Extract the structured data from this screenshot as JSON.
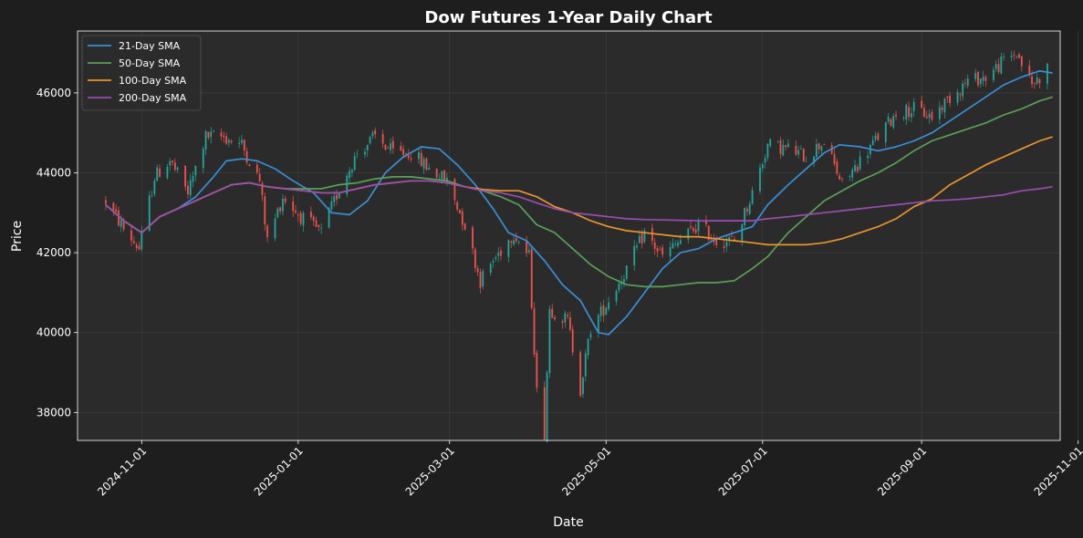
{
  "colors": {
    "figure_bg": "#1e1e1e",
    "plot_bg": "#2b2b2b",
    "grid": "#3c3c3c",
    "text": "#ffffff",
    "up": "#26a69a",
    "down": "#ef5350",
    "sma21": "#3a8fd6",
    "sma50": "#5aa05a",
    "sma100": "#e8952e",
    "sma200": "#9a4db0"
  },
  "chart_data": {
    "type": "line",
    "title": "Dow Futures 1-Year Daily Chart",
    "xlabel": "Date",
    "ylabel": "Price",
    "xlim": [
      "2024-10-07",
      "2025-10-25"
    ],
    "ylim": [
      37300,
      47550
    ],
    "grid": true,
    "legend_position": "top-left",
    "x_ticks": [
      "2024-11-01",
      "2025-01-01",
      "2025-03-01",
      "2025-05-01",
      "2025-07-01",
      "2025-09-01",
      "2025-11-01"
    ],
    "y_ticks": [
      38000,
      40000,
      42000,
      44000,
      46000
    ],
    "candlestick_anchors": [
      [
        "2024-10-18",
        43300
      ],
      [
        "2024-10-25",
        42600
      ],
      [
        "2024-10-31",
        42100
      ],
      [
        "2024-11-06",
        43900
      ],
      [
        "2024-11-12",
        44300
      ],
      [
        "2024-11-19",
        43500
      ],
      [
        "2024-11-26",
        44900
      ],
      [
        "2024-12-03",
        44900
      ],
      [
        "2024-12-10",
        44700
      ],
      [
        "2024-12-17",
        43800
      ],
      [
        "2024-12-20",
        42300
      ],
      [
        "2024-12-26",
        43400
      ],
      [
        "2025-01-02",
        42900
      ],
      [
        "2025-01-10",
        42500
      ],
      [
        "2025-01-17",
        43600
      ],
      [
        "2025-01-24",
        44500
      ],
      [
        "2025-01-31",
        44900
      ],
      [
        "2025-02-07",
        44500
      ],
      [
        "2025-02-14",
        44500
      ],
      [
        "2025-02-21",
        44100
      ],
      [
        "2025-02-28",
        43800
      ],
      [
        "2025-03-07",
        42700
      ],
      [
        "2025-03-13",
        41300
      ],
      [
        "2025-03-18",
        41800
      ],
      [
        "2025-03-26",
        42500
      ],
      [
        "2025-04-01",
        41900
      ],
      [
        "2025-04-04",
        38500
      ],
      [
        "2025-04-07",
        37500
      ],
      [
        "2025-04-09",
        40600
      ],
      [
        "2025-04-16",
        40300
      ],
      [
        "2025-04-21",
        38600
      ],
      [
        "2025-04-25",
        40100
      ],
      [
        "2025-05-01",
        40700
      ],
      [
        "2025-05-09",
        41600
      ],
      [
        "2025-05-16",
        42500
      ],
      [
        "2025-05-23",
        41900
      ],
      [
        "2025-05-30",
        42300
      ],
      [
        "2025-06-06",
        42700
      ],
      [
        "2025-06-13",
        42300
      ],
      [
        "2025-06-20",
        42300
      ],
      [
        "2025-06-27",
        43500
      ],
      [
        "2025-07-03",
        44700
      ],
      [
        "2025-07-11",
        44600
      ],
      [
        "2025-07-18",
        44400
      ],
      [
        "2025-07-25",
        44800
      ],
      [
        "2025-08-01",
        43700
      ],
      [
        "2025-08-08",
        44300
      ],
      [
        "2025-08-15",
        44900
      ],
      [
        "2025-08-22",
        45500
      ],
      [
        "2025-08-29",
        45600
      ],
      [
        "2025-09-05",
        45400
      ],
      [
        "2025-09-12",
        45900
      ],
      [
        "2025-09-19",
        46300
      ],
      [
        "2025-09-26",
        46400
      ],
      [
        "2025-10-03",
        46800
      ],
      [
        "2025-10-08",
        47000
      ],
      [
        "2025-10-14",
        46200
      ],
      [
        "2025-10-20",
        46600
      ]
    ],
    "series": [
      {
        "name": "21-Day SMA",
        "points": [
          [
            "2024-10-18",
            43200
          ],
          [
            "2024-10-25",
            42800
          ],
          [
            "2024-11-01",
            42500
          ],
          [
            "2024-11-08",
            42900
          ],
          [
            "2024-11-15",
            43100
          ],
          [
            "2024-11-22",
            43400
          ],
          [
            "2024-11-29",
            43900
          ],
          [
            "2024-12-04",
            44300
          ],
          [
            "2024-12-10",
            44350
          ],
          [
            "2024-12-16",
            44300
          ],
          [
            "2024-12-23",
            44100
          ],
          [
            "2024-12-30",
            43800
          ],
          [
            "2025-01-07",
            43500
          ],
          [
            "2025-01-14",
            43000
          ],
          [
            "2025-01-21",
            42950
          ],
          [
            "2025-01-28",
            43300
          ],
          [
            "2025-02-04",
            44000
          ],
          [
            "2025-02-11",
            44400
          ],
          [
            "2025-02-18",
            44650
          ],
          [
            "2025-02-25",
            44600
          ],
          [
            "2025-03-04",
            44200
          ],
          [
            "2025-03-11",
            43700
          ],
          [
            "2025-03-18",
            43100
          ],
          [
            "2025-03-24",
            42500
          ],
          [
            "2025-03-31",
            42300
          ],
          [
            "2025-04-07",
            41800
          ],
          [
            "2025-04-14",
            41200
          ],
          [
            "2025-04-21",
            40800
          ],
          [
            "2025-04-28",
            40000
          ],
          [
            "2025-05-02",
            39950
          ],
          [
            "2025-05-09",
            40400
          ],
          [
            "2025-05-16",
            41000
          ],
          [
            "2025-05-23",
            41600
          ],
          [
            "2025-05-30",
            42000
          ],
          [
            "2025-06-06",
            42100
          ],
          [
            "2025-06-13",
            42350
          ],
          [
            "2025-06-20",
            42500
          ],
          [
            "2025-06-27",
            42650
          ],
          [
            "2025-07-03",
            43200
          ],
          [
            "2025-07-11",
            43700
          ],
          [
            "2025-07-18",
            44100
          ],
          [
            "2025-07-25",
            44500
          ],
          [
            "2025-07-31",
            44700
          ],
          [
            "2025-08-08",
            44650
          ],
          [
            "2025-08-15",
            44550
          ],
          [
            "2025-08-22",
            44650
          ],
          [
            "2025-08-29",
            44800
          ],
          [
            "2025-09-05",
            45000
          ],
          [
            "2025-09-12",
            45300
          ],
          [
            "2025-09-19",
            45600
          ],
          [
            "2025-09-26",
            45900
          ],
          [
            "2025-10-03",
            46200
          ],
          [
            "2025-10-10",
            46400
          ],
          [
            "2025-10-17",
            46550
          ],
          [
            "2025-10-22",
            46500
          ]
        ]
      },
      {
        "name": "50-Day SMA",
        "points": [
          [
            "2024-10-18",
            43200
          ],
          [
            "2024-10-25",
            42800
          ],
          [
            "2024-11-01",
            42500
          ],
          [
            "2024-11-08",
            42900
          ],
          [
            "2024-11-15",
            43100
          ],
          [
            "2024-11-22",
            43300
          ],
          [
            "2024-11-29",
            43500
          ],
          [
            "2024-12-06",
            43700
          ],
          [
            "2024-12-13",
            43750
          ],
          [
            "2024-12-20",
            43650
          ],
          [
            "2024-12-27",
            43600
          ],
          [
            "2025-01-03",
            43600
          ],
          [
            "2025-01-10",
            43600
          ],
          [
            "2025-01-17",
            43700
          ],
          [
            "2025-01-24",
            43750
          ],
          [
            "2025-01-31",
            43850
          ],
          [
            "2025-02-07",
            43900
          ],
          [
            "2025-02-14",
            43900
          ],
          [
            "2025-02-21",
            43850
          ],
          [
            "2025-02-28",
            43800
          ],
          [
            "2025-03-07",
            43650
          ],
          [
            "2025-03-14",
            43550
          ],
          [
            "2025-03-21",
            43400
          ],
          [
            "2025-03-28",
            43200
          ],
          [
            "2025-04-04",
            42700
          ],
          [
            "2025-04-11",
            42500
          ],
          [
            "2025-04-18",
            42100
          ],
          [
            "2025-04-25",
            41700
          ],
          [
            "2025-05-02",
            41400
          ],
          [
            "2025-05-09",
            41200
          ],
          [
            "2025-05-16",
            41150
          ],
          [
            "2025-05-23",
            41150
          ],
          [
            "2025-05-30",
            41200
          ],
          [
            "2025-06-06",
            41250
          ],
          [
            "2025-06-13",
            41250
          ],
          [
            "2025-06-20",
            41300
          ],
          [
            "2025-06-27",
            41600
          ],
          [
            "2025-07-03",
            41900
          ],
          [
            "2025-07-11",
            42500
          ],
          [
            "2025-07-18",
            42900
          ],
          [
            "2025-07-25",
            43300
          ],
          [
            "2025-08-01",
            43550
          ],
          [
            "2025-08-08",
            43800
          ],
          [
            "2025-08-15",
            44000
          ],
          [
            "2025-08-22",
            44250
          ],
          [
            "2025-08-29",
            44550
          ],
          [
            "2025-09-05",
            44800
          ],
          [
            "2025-09-12",
            44950
          ],
          [
            "2025-09-19",
            45100
          ],
          [
            "2025-09-26",
            45250
          ],
          [
            "2025-10-03",
            45450
          ],
          [
            "2025-10-10",
            45600
          ],
          [
            "2025-10-17",
            45800
          ],
          [
            "2025-10-22",
            45900
          ]
        ]
      },
      {
        "name": "100-Day SMA",
        "points": [
          [
            "2024-10-18",
            43200
          ],
          [
            "2024-10-25",
            42800
          ],
          [
            "2024-11-01",
            42500
          ],
          [
            "2024-11-08",
            42900
          ],
          [
            "2024-11-15",
            43100
          ],
          [
            "2024-11-22",
            43300
          ],
          [
            "2024-11-29",
            43500
          ],
          [
            "2024-12-06",
            43700
          ],
          [
            "2024-12-13",
            43750
          ],
          [
            "2024-12-20",
            43650
          ],
          [
            "2024-12-27",
            43600
          ],
          [
            "2025-01-03",
            43550
          ],
          [
            "2025-01-10",
            43500
          ],
          [
            "2025-01-17",
            43500
          ],
          [
            "2025-01-24",
            43600
          ],
          [
            "2025-01-31",
            43700
          ],
          [
            "2025-02-07",
            43750
          ],
          [
            "2025-02-14",
            43800
          ],
          [
            "2025-02-21",
            43800
          ],
          [
            "2025-02-28",
            43750
          ],
          [
            "2025-03-07",
            43650
          ],
          [
            "2025-03-14",
            43580
          ],
          [
            "2025-03-21",
            43550
          ],
          [
            "2025-03-28",
            43550
          ],
          [
            "2025-04-04",
            43400
          ],
          [
            "2025-04-11",
            43150
          ],
          [
            "2025-04-18",
            43000
          ],
          [
            "2025-04-25",
            42800
          ],
          [
            "2025-05-02",
            42650
          ],
          [
            "2025-05-09",
            42550
          ],
          [
            "2025-05-16",
            42500
          ],
          [
            "2025-05-23",
            42450
          ],
          [
            "2025-05-30",
            42400
          ],
          [
            "2025-06-06",
            42400
          ],
          [
            "2025-06-13",
            42350
          ],
          [
            "2025-06-20",
            42300
          ],
          [
            "2025-06-27",
            42250
          ],
          [
            "2025-07-03",
            42200
          ],
          [
            "2025-07-11",
            42200
          ],
          [
            "2025-07-18",
            42200
          ],
          [
            "2025-07-25",
            42250
          ],
          [
            "2025-08-01",
            42350
          ],
          [
            "2025-08-08",
            42500
          ],
          [
            "2025-08-15",
            42650
          ],
          [
            "2025-08-22",
            42850
          ],
          [
            "2025-08-29",
            43150
          ],
          [
            "2025-09-05",
            43350
          ],
          [
            "2025-09-12",
            43700
          ],
          [
            "2025-09-19",
            43950
          ],
          [
            "2025-09-26",
            44200
          ],
          [
            "2025-10-03",
            44400
          ],
          [
            "2025-10-10",
            44600
          ],
          [
            "2025-10-17",
            44800
          ],
          [
            "2025-10-22",
            44900
          ]
        ]
      },
      {
        "name": "200-Day SMA",
        "points": [
          [
            "2024-10-18",
            43200
          ],
          [
            "2024-10-25",
            42800
          ],
          [
            "2024-11-01",
            42500
          ],
          [
            "2024-11-08",
            42900
          ],
          [
            "2024-11-15",
            43100
          ],
          [
            "2024-11-22",
            43300
          ],
          [
            "2024-11-29",
            43500
          ],
          [
            "2024-12-06",
            43700
          ],
          [
            "2024-12-13",
            43750
          ],
          [
            "2024-12-20",
            43650
          ],
          [
            "2024-12-27",
            43600
          ],
          [
            "2025-01-03",
            43550
          ],
          [
            "2025-01-10",
            43500
          ],
          [
            "2025-01-17",
            43500
          ],
          [
            "2025-01-24",
            43600
          ],
          [
            "2025-01-31",
            43700
          ],
          [
            "2025-02-07",
            43750
          ],
          [
            "2025-02-14",
            43800
          ],
          [
            "2025-02-21",
            43800
          ],
          [
            "2025-02-28",
            43750
          ],
          [
            "2025-03-07",
            43650
          ],
          [
            "2025-03-14",
            43550
          ],
          [
            "2025-03-21",
            43500
          ],
          [
            "2025-03-28",
            43400
          ],
          [
            "2025-04-04",
            43250
          ],
          [
            "2025-04-11",
            43100
          ],
          [
            "2025-04-18",
            43000
          ],
          [
            "2025-04-25",
            42950
          ],
          [
            "2025-05-02",
            42900
          ],
          [
            "2025-05-09",
            42850
          ],
          [
            "2025-05-16",
            42830
          ],
          [
            "2025-05-23",
            42820
          ],
          [
            "2025-05-30",
            42810
          ],
          [
            "2025-06-06",
            42800
          ],
          [
            "2025-06-13",
            42800
          ],
          [
            "2025-06-20",
            42800
          ],
          [
            "2025-06-27",
            42800
          ],
          [
            "2025-07-03",
            42850
          ],
          [
            "2025-07-11",
            42900
          ],
          [
            "2025-07-18",
            42950
          ],
          [
            "2025-07-25",
            43000
          ],
          [
            "2025-08-01",
            43050
          ],
          [
            "2025-08-08",
            43100
          ],
          [
            "2025-08-15",
            43150
          ],
          [
            "2025-08-22",
            43200
          ],
          [
            "2025-08-29",
            43250
          ],
          [
            "2025-09-05",
            43300
          ],
          [
            "2025-09-12",
            43320
          ],
          [
            "2025-09-19",
            43350
          ],
          [
            "2025-09-26",
            43400
          ],
          [
            "2025-10-03",
            43450
          ],
          [
            "2025-10-10",
            43550
          ],
          [
            "2025-10-17",
            43600
          ],
          [
            "2025-10-22",
            43650
          ]
        ]
      }
    ]
  }
}
